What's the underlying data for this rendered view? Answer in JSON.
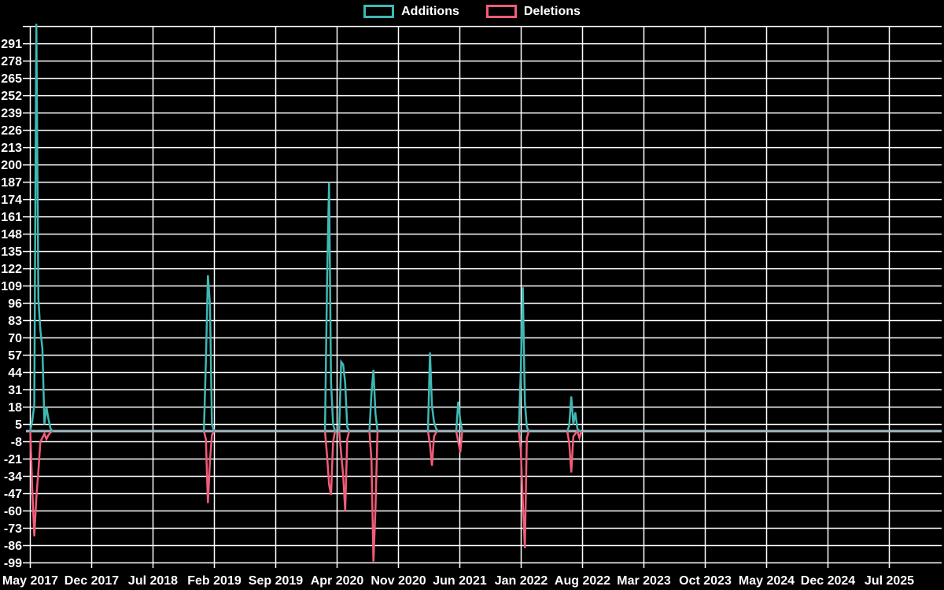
{
  "chart_data": {
    "type": "line",
    "title": "",
    "legend_position": "top-center",
    "background": "#000000",
    "grid": {
      "color": "#ffffff",
      "x_spacing_months": 7,
      "y_spacing_units": 13
    },
    "baseline": {
      "value": 0,
      "color": "#a3bcc6"
    },
    "y_axis": {
      "min": -99,
      "max": 304,
      "tick_step": 13,
      "ticks": [
        291,
        278,
        265,
        252,
        239,
        226,
        213,
        200,
        187,
        174,
        161,
        148,
        135,
        122,
        109,
        96,
        83,
        70,
        57,
        44,
        31,
        18,
        5,
        -8,
        -21,
        -34,
        -47,
        -60,
        -73,
        -86,
        -99
      ]
    },
    "x_axis": {
      "unit": "weeks since May 2017",
      "tick_labels": [
        "May 2017",
        "Dec 2017",
        "Jul 2018",
        "Feb 2019",
        "Sep 2019",
        "Apr 2020",
        "Nov 2020",
        "Jun 2021",
        "Jan 2022",
        "Aug 2022",
        "Mar 2023",
        "Oct 2023",
        "May 2024",
        "Dec 2024",
        "Jul 2025"
      ],
      "weeks_per_tick": 30.4
    },
    "series": [
      {
        "name": "Additions",
        "color": "#3fb8b4",
        "clusters": [
          [
            [
              0,
              0
            ],
            [
              1,
              8
            ],
            [
              2,
              20
            ],
            [
              3,
              306
            ],
            [
              4,
              99
            ],
            [
              5,
              76
            ],
            [
              6,
              62
            ],
            [
              7,
              5
            ],
            [
              8,
              18
            ],
            [
              9,
              9
            ],
            [
              10,
              2
            ],
            [
              11,
              0
            ]
          ],
          [
            [
              86,
              0
            ],
            [
              87,
              52
            ],
            [
              88,
              117
            ],
            [
              89,
              95
            ],
            [
              90,
              5
            ],
            [
              91,
              0
            ]
          ],
          [
            [
              146,
              0
            ],
            [
              147,
              110
            ],
            [
              148,
              187
            ],
            [
              149,
              37
            ],
            [
              150,
              5
            ],
            [
              151,
              0
            ]
          ],
          [
            [
              153,
              0
            ],
            [
              154,
              52
            ],
            [
              155,
              50
            ],
            [
              156,
              36
            ],
            [
              157,
              3
            ],
            [
              158,
              0
            ]
          ],
          [
            [
              168,
              0
            ],
            [
              169,
              28
            ],
            [
              170,
              46
            ],
            [
              171,
              13
            ],
            [
              172,
              0
            ]
          ],
          [
            [
              197,
              0
            ],
            [
              198,
              59
            ],
            [
              199,
              19
            ],
            [
              200,
              7
            ],
            [
              201,
              2
            ],
            [
              202,
              0
            ]
          ],
          [
            [
              211,
              0
            ],
            [
              212,
              22
            ],
            [
              213,
              8
            ],
            [
              214,
              0
            ]
          ],
          [
            [
              242,
              0
            ],
            [
              243,
              45
            ],
            [
              244,
              108
            ],
            [
              245,
              22
            ],
            [
              246,
              3
            ],
            [
              247,
              0
            ]
          ],
          [
            [
              266,
              0
            ],
            [
              267,
              4
            ],
            [
              268,
              26
            ],
            [
              269,
              5
            ],
            [
              270,
              14
            ],
            [
              271,
              2
            ],
            [
              272,
              0
            ],
            [
              273,
              0
            ]
          ]
        ]
      },
      {
        "name": "Deletions",
        "color": "#f25c78",
        "clusters": [
          [
            [
              0,
              0
            ],
            [
              1,
              -45
            ],
            [
              2,
              -79
            ],
            [
              3,
              -50
            ],
            [
              4,
              -30
            ],
            [
              5,
              -8
            ],
            [
              6,
              -5
            ],
            [
              7,
              -2
            ],
            [
              8,
              -6
            ],
            [
              9,
              -3
            ],
            [
              10,
              -1
            ],
            [
              11,
              0
            ]
          ],
          [
            [
              86,
              0
            ],
            [
              87,
              -6
            ],
            [
              88,
              -54
            ],
            [
              89,
              -22
            ],
            [
              90,
              -3
            ],
            [
              91,
              0
            ]
          ],
          [
            [
              146,
              0
            ],
            [
              147,
              -18
            ],
            [
              148,
              -40
            ],
            [
              149,
              -48
            ],
            [
              150,
              -8
            ],
            [
              151,
              0
            ]
          ],
          [
            [
              153,
              0
            ],
            [
              154,
              -17
            ],
            [
              155,
              -33
            ],
            [
              156,
              -60
            ],
            [
              157,
              -6
            ],
            [
              158,
              0
            ]
          ],
          [
            [
              168,
              0
            ],
            [
              169,
              -22
            ],
            [
              170,
              -98
            ],
            [
              171,
              -58
            ],
            [
              172,
              0
            ]
          ],
          [
            [
              197,
              0
            ],
            [
              198,
              -10
            ],
            [
              199,
              -26
            ],
            [
              200,
              -4
            ],
            [
              201,
              -1
            ],
            [
              202,
              0
            ]
          ],
          [
            [
              211,
              0
            ],
            [
              212,
              -8
            ],
            [
              213,
              -16
            ],
            [
              214,
              0
            ]
          ],
          [
            [
              242,
              0
            ],
            [
              243,
              -14
            ],
            [
              244,
              -53
            ],
            [
              245,
              -88
            ],
            [
              246,
              -5
            ],
            [
              247,
              0
            ]
          ],
          [
            [
              266,
              0
            ],
            [
              267,
              -9
            ],
            [
              268,
              -31
            ],
            [
              269,
              -4
            ],
            [
              270,
              -2
            ],
            [
              271,
              0
            ],
            [
              272,
              -5
            ],
            [
              273,
              0
            ]
          ]
        ]
      }
    ]
  },
  "legend": {
    "additions": "Additions",
    "deletions": "Deletions"
  }
}
